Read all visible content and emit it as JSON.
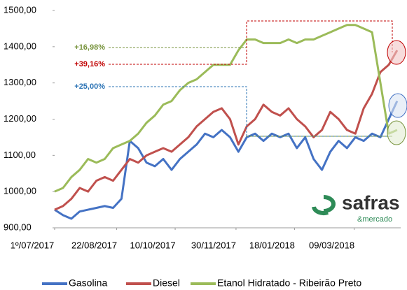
{
  "chart_data": {
    "type": "line",
    "x": [
      "2017-07-01",
      "2017-07-08",
      "2017-07-15",
      "2017-07-22",
      "2017-07-29",
      "2017-08-05",
      "2017-08-12",
      "2017-08-19",
      "2017-08-26",
      "2017-09-02",
      "2017-09-09",
      "2017-09-16",
      "2017-09-23",
      "2017-09-30",
      "2017-10-07",
      "2017-10-14",
      "2017-10-21",
      "2017-10-28",
      "2017-11-04",
      "2017-11-11",
      "2017-11-18",
      "2017-11-25",
      "2017-12-02",
      "2017-12-09",
      "2017-12-16",
      "2017-12-23",
      "2017-12-30",
      "2018-01-06",
      "2018-01-13",
      "2018-01-20",
      "2018-01-27",
      "2018-02-03",
      "2018-02-10",
      "2018-02-17",
      "2018-02-24",
      "2018-03-03",
      "2018-03-10",
      "2018-03-17",
      "2018-03-24",
      "2018-03-31",
      "2018-04-07",
      "2018-04-14"
    ],
    "series": [
      {
        "name": "Gasolina",
        "color": "#4472c4",
        "values": [
          950,
          935,
          925,
          945,
          950,
          955,
          960,
          955,
          980,
          1140,
          1120,
          1080,
          1070,
          1090,
          1060,
          1090,
          1110,
          1130,
          1160,
          1150,
          1170,
          1150,
          1110,
          1150,
          1160,
          1140,
          1160,
          1150,
          1160,
          1120,
          1150,
          1090,
          1060,
          1110,
          1140,
          1120,
          1150,
          1140,
          1160,
          1150,
          1200,
          1250
        ]
      },
      {
        "name": "Diesel",
        "color": "#c0504d",
        "values": [
          950,
          960,
          980,
          1010,
          1000,
          1030,
          1040,
          1030,
          1060,
          1090,
          1080,
          1100,
          1110,
          1120,
          1110,
          1130,
          1150,
          1180,
          1200,
          1220,
          1230,
          1200,
          1130,
          1180,
          1200,
          1240,
          1220,
          1210,
          1230,
          1200,
          1180,
          1150,
          1170,
          1220,
          1200,
          1170,
          1160,
          1230,
          1270,
          1330,
          1350,
          1390
        ]
      },
      {
        "name": "Etanol Hidratado - Ribeirão Preto",
        "color": "#9bbb59",
        "values": [
          1000,
          1010,
          1040,
          1060,
          1090,
          1080,
          1090,
          1120,
          1130,
          1140,
          1160,
          1190,
          1210,
          1240,
          1250,
          1280,
          1300,
          1310,
          1330,
          1350,
          1350,
          1350,
          1390,
          1420,
          1420,
          1410,
          1410,
          1410,
          1420,
          1410,
          1420,
          1420,
          1430,
          1440,
          1450,
          1460,
          1460,
          1450,
          1440,
          1300,
          1160,
          1170
        ]
      }
    ],
    "xlim": [
      "2017-07-01",
      "2018-04-17"
    ],
    "xticks": [
      {
        "value": "2017-07-01",
        "label": "1º/07/2017"
      },
      {
        "value": "2017-08-22",
        "label": "22/08/2017"
      },
      {
        "value": "2017-10-10",
        "label": "10/10/2017"
      },
      {
        "value": "2017-11-30",
        "label": "30/11/2017"
      },
      {
        "value": "2018-01-18",
        "label": "18/01/2018"
      },
      {
        "value": "2018-03-09",
        "label": "09/03/2018"
      }
    ],
    "ylim": [
      900,
      1500
    ],
    "yticks": [
      {
        "value": 900,
        "label": "900,00"
      },
      {
        "value": 1000,
        "label": "1000,00"
      },
      {
        "value": 1100,
        "label": "1100,00"
      },
      {
        "value": 1200,
        "label": "1200,00"
      },
      {
        "value": 1300,
        "label": "1300,00"
      },
      {
        "value": 1400,
        "label": "1400,00"
      },
      {
        "value": 1500,
        "label": "1500,00"
      }
    ],
    "annotations": [
      {
        "text": "+16,98%",
        "color": "#77933c"
      },
      {
        "text": "+39,16%",
        "color": "#c00000"
      },
      {
        "text": "+25,00%",
        "color": "#2e75b6"
      }
    ],
    "legend": "bottom",
    "logo": {
      "name": "safras",
      "tagline": "&mercado"
    }
  }
}
